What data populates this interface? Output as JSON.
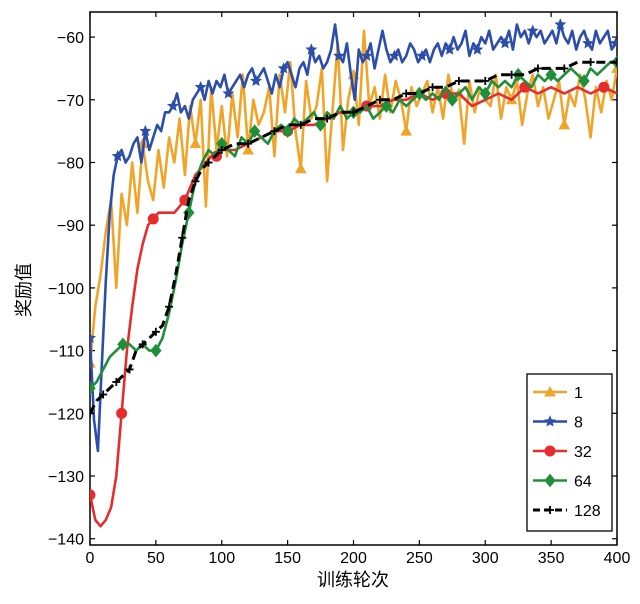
{
  "chart_data": {
    "type": "line",
    "title": "",
    "xlabel": "训练轮次",
    "ylabel": "奖励值",
    "xlim": [
      0,
      400
    ],
    "ylim": [
      -141,
      -56
    ],
    "xticks": [
      0,
      50,
      100,
      150,
      200,
      250,
      300,
      350,
      400
    ],
    "yticks": [
      -60,
      -70,
      -80,
      -90,
      -100,
      -110,
      -120,
      -130,
      -140
    ],
    "legend_position": "bottom-right",
    "series": [
      {
        "name": "1",
        "color": "#f0a52a",
        "marker": "triangle",
        "dash": "solid",
        "x": [
          0,
          4,
          8,
          12,
          16,
          20,
          24,
          28,
          32,
          36,
          40,
          44,
          48,
          52,
          56,
          60,
          64,
          68,
          72,
          76,
          80,
          84,
          88,
          92,
          96,
          100,
          104,
          108,
          112,
          116,
          120,
          124,
          128,
          132,
          136,
          140,
          144,
          148,
          152,
          156,
          160,
          164,
          168,
          172,
          176,
          180,
          184,
          188,
          192,
          196,
          200,
          204,
          208,
          212,
          216,
          220,
          224,
          228,
          232,
          236,
          240,
          244,
          248,
          252,
          256,
          260,
          264,
          268,
          272,
          276,
          280,
          284,
          288,
          292,
          296,
          300,
          304,
          308,
          312,
          316,
          320,
          324,
          328,
          332,
          336,
          340,
          344,
          348,
          352,
          356,
          360,
          364,
          368,
          372,
          376,
          380,
          384,
          388,
          392,
          396,
          400
        ],
        "values": [
          -112,
          -103,
          -98,
          -91,
          -86,
          -100,
          -85,
          -90,
          -80,
          -88,
          -77,
          -83,
          -86,
          -78,
          -84,
          -76,
          -80,
          -73,
          -82,
          -71,
          -77,
          -70,
          -87,
          -68,
          -78,
          -71,
          -79,
          -69,
          -76,
          -66,
          -78,
          -70,
          -74,
          -72,
          -68,
          -79,
          -66,
          -72,
          -64,
          -75,
          -81,
          -67,
          -73,
          -71,
          -65,
          -83,
          -72,
          -61,
          -78,
          -70,
          -66,
          -74,
          -59,
          -71,
          -68,
          -73,
          -66,
          -72,
          -67,
          -70,
          -75,
          -68,
          -71,
          -69,
          -67,
          -72,
          -68,
          -73,
          -66,
          -70,
          -69,
          -77,
          -67,
          -72,
          -68,
          -70,
          -71,
          -66,
          -73,
          -68,
          -70,
          -67,
          -74,
          -69,
          -66,
          -71,
          -68,
          -73,
          -70,
          -67,
          -74,
          -69,
          -71,
          -66,
          -70,
          -76,
          -68,
          -72,
          -67,
          -70,
          -65
        ],
        "marker_every": 10
      },
      {
        "name": "8",
        "color": "#2c4eab",
        "marker": "star",
        "dash": "solid",
        "x": [
          0,
          3,
          6,
          9,
          12,
          15,
          18,
          21,
          24,
          27,
          30,
          33,
          36,
          39,
          42,
          45,
          48,
          51,
          54,
          57,
          60,
          63,
          66,
          69,
          72,
          75,
          78,
          81,
          84,
          87,
          90,
          93,
          96,
          99,
          102,
          105,
          108,
          111,
          114,
          117,
          120,
          123,
          126,
          129,
          132,
          135,
          138,
          141,
          144,
          147,
          150,
          153,
          156,
          159,
          162,
          165,
          168,
          171,
          174,
          177,
          180,
          183,
          186,
          189,
          192,
          195,
          198,
          201,
          204,
          207,
          210,
          213,
          216,
          219,
          222,
          225,
          228,
          231,
          234,
          237,
          240,
          243,
          246,
          249,
          252,
          255,
          258,
          261,
          264,
          267,
          270,
          273,
          276,
          279,
          282,
          285,
          288,
          291,
          294,
          297,
          300,
          303,
          306,
          309,
          312,
          315,
          318,
          321,
          324,
          327,
          330,
          333,
          336,
          339,
          342,
          345,
          348,
          351,
          354,
          357,
          360,
          363,
          366,
          369,
          372,
          375,
          378,
          381,
          384,
          387,
          390,
          393,
          396,
          399
        ],
        "values": [
          -108,
          -121,
          -126,
          -112,
          -99,
          -88,
          -82,
          -79,
          -78,
          -80,
          -79,
          -77,
          -76,
          -80,
          -75,
          -78,
          -76,
          -74,
          -75,
          -72,
          -72,
          -71,
          -69,
          -72,
          -71,
          -73,
          -70,
          -69,
          -68,
          -70,
          -67,
          -69,
          -67,
          -68,
          -66,
          -69,
          -68,
          -67,
          -66,
          -68,
          -66,
          -65,
          -67,
          -66,
          -65,
          -67,
          -69,
          -66,
          -68,
          -65,
          -64,
          -66,
          -68,
          -65,
          -64,
          -66,
          -62,
          -64,
          -63,
          -65,
          -64,
          -62,
          -58,
          -63,
          -64,
          -61,
          -66,
          -70,
          -62,
          -64,
          -63,
          -61,
          -65,
          -62,
          -59,
          -62,
          -64,
          -63,
          -62,
          -64,
          -63,
          -61,
          -62,
          -64,
          -63,
          -62,
          -64,
          -62,
          -61,
          -63,
          -61,
          -62,
          -60,
          -62,
          -61,
          -59,
          -63,
          -61,
          -62,
          -60,
          -61,
          -59,
          -62,
          -61,
          -60,
          -61,
          -59,
          -62,
          -58,
          -60,
          -59,
          -61,
          -59,
          -60,
          -59,
          -61,
          -60,
          -59,
          -61,
          -58,
          -60,
          -61,
          -59,
          -62,
          -60,
          -59,
          -61,
          -62,
          -59,
          -61,
          -60,
          -59,
          -62,
          -61
        ],
        "marker_every": 7
      },
      {
        "name": "32",
        "color": "#e52d2d",
        "marker": "circle",
        "dash": "solid",
        "x": [
          0,
          4,
          8,
          12,
          16,
          20,
          24,
          28,
          32,
          36,
          40,
          44,
          48,
          52,
          56,
          60,
          64,
          68,
          72,
          76,
          80,
          84,
          88,
          92,
          96,
          100,
          110,
          120,
          130,
          140,
          150,
          160,
          170,
          180,
          190,
          200,
          210,
          220,
          230,
          240,
          250,
          260,
          270,
          280,
          290,
          300,
          310,
          320,
          330,
          340,
          350,
          360,
          370,
          380,
          390,
          400
        ],
        "values": [
          -133,
          -137,
          -138,
          -137,
          -135,
          -130,
          -120,
          -110,
          -103,
          -97,
          -93,
          -90,
          -89,
          -88,
          -88,
          -88,
          -88,
          -87,
          -86,
          -84,
          -82,
          -81,
          -80,
          -79,
          -79,
          -78,
          -78,
          -77,
          -76,
          -75,
          -75,
          -74,
          -74,
          -73,
          -72,
          -72,
          -71,
          -71,
          -70,
          -70,
          -69,
          -70,
          -69,
          -69,
          -71,
          -70,
          -69,
          -70,
          -68,
          -69,
          -68,
          -69,
          -68,
          -69,
          -68,
          -69
        ],
        "marker_every": 6
      },
      {
        "name": "64",
        "color": "#1f8f3a",
        "marker": "diamond",
        "dash": "solid",
        "x": [
          0,
          5,
          10,
          15,
          20,
          25,
          30,
          35,
          40,
          45,
          50,
          55,
          60,
          65,
          70,
          75,
          80,
          85,
          90,
          95,
          100,
          105,
          110,
          115,
          120,
          125,
          130,
          135,
          140,
          145,
          150,
          155,
          160,
          165,
          170,
          175,
          180,
          185,
          190,
          195,
          200,
          205,
          210,
          215,
          220,
          225,
          230,
          235,
          240,
          245,
          250,
          255,
          260,
          265,
          270,
          275,
          280,
          285,
          290,
          295,
          300,
          305,
          310,
          315,
          320,
          325,
          330,
          335,
          340,
          345,
          350,
          355,
          360,
          365,
          370,
          375,
          380,
          385,
          390,
          395,
          400
        ],
        "values": [
          -116,
          -115,
          -113,
          -111,
          -110,
          -109,
          -109,
          -110,
          -109,
          -110,
          -110,
          -108,
          -104,
          -99,
          -93,
          -88,
          -83,
          -80,
          -78,
          -79,
          -77,
          -78,
          -79,
          -76,
          -77,
          -75,
          -76,
          -77,
          -75,
          -74,
          -75,
          -73,
          -74,
          -73,
          -72,
          -74,
          -72,
          -73,
          -71,
          -73,
          -72,
          -72,
          -71,
          -73,
          -72,
          -71,
          -72,
          -70,
          -71,
          -70,
          -69,
          -70,
          -69,
          -70,
          -68,
          -70,
          -69,
          -68,
          -70,
          -68,
          -69,
          -67,
          -68,
          -67,
          -68,
          -66,
          -67,
          -68,
          -66,
          -67,
          -66,
          -67,
          -66,
          -65,
          -66,
          -67,
          -65,
          -66,
          -65,
          -64,
          -64
        ],
        "marker_every": 5
      },
      {
        "name": "128",
        "color": "#000000",
        "marker": "plus",
        "dash": "dashed",
        "x": [
          0,
          5,
          10,
          15,
          20,
          25,
          30,
          35,
          40,
          45,
          50,
          55,
          60,
          65,
          70,
          75,
          80,
          85,
          90,
          95,
          100,
          110,
          120,
          130,
          140,
          150,
          160,
          170,
          180,
          190,
          200,
          210,
          220,
          230,
          240,
          250,
          260,
          270,
          280,
          290,
          300,
          310,
          320,
          330,
          340,
          350,
          360,
          370,
          380,
          390,
          400
        ],
        "values": [
          -120,
          -118,
          -117,
          -116,
          -115,
          -114,
          -113,
          -110,
          -109,
          -108,
          -107,
          -106,
          -103,
          -98,
          -92,
          -86,
          -83,
          -81,
          -80,
          -79,
          -78,
          -77,
          -77,
          -76,
          -75,
          -74,
          -74,
          -73,
          -73,
          -72,
          -72,
          -71,
          -70,
          -70,
          -69,
          -69,
          -68,
          -68,
          -67,
          -67,
          -67,
          -66,
          -66,
          -66,
          -65,
          -65,
          -65,
          -64,
          -64,
          -64,
          -64
        ],
        "marker_every": 2
      }
    ]
  }
}
